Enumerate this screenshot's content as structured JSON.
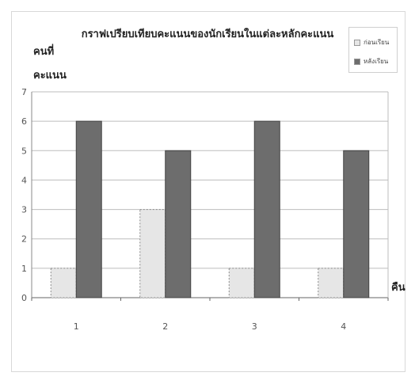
{
  "chart_data": {
    "type": "bar",
    "title": "กราฟเปรียบเทียบคะแนนของนักเรียนในแต่ละหลักคะแนน",
    "ylabel": [
      "คนที่",
      "คะแนน"
    ],
    "xlabel": "คืน",
    "categories": [
      "1",
      "2",
      "3",
      "4"
    ],
    "ylim": [
      0,
      7
    ],
    "yticks": [
      0,
      1,
      2,
      3,
      4,
      5,
      6,
      7
    ],
    "grid": true,
    "legend_position": "top-right",
    "series": [
      {
        "name": "ก่อนเรียน",
        "values": [
          1,
          3,
          1,
          1
        ],
        "color": "#e6e6e6"
      },
      {
        "name": "หลังเรียน",
        "values": [
          6,
          5,
          6,
          5
        ],
        "color": "#6d6d6d"
      }
    ]
  }
}
